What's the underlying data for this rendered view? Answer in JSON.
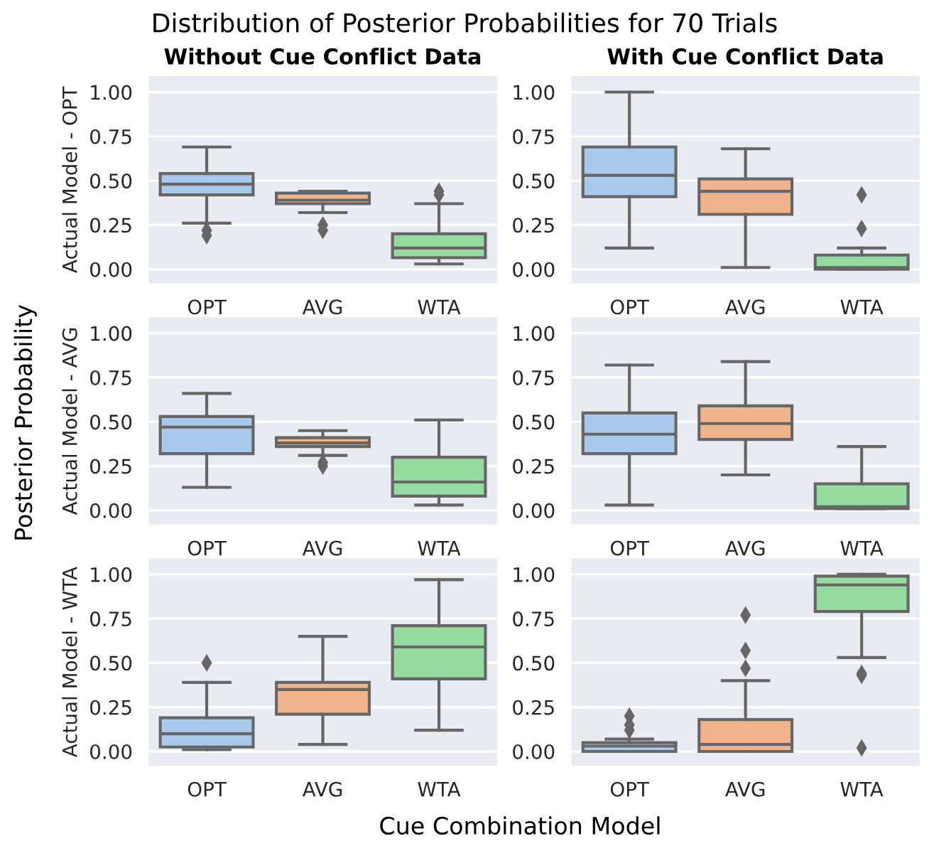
{
  "chart_data": [
    {
      "type": "box",
      "title": "Without Cue Conflict Data",
      "ylabel": "Actual Model - OPT",
      "categories": [
        "OPT",
        "AVG",
        "WTA"
      ],
      "colors": [
        "#a8c8ec",
        "#f0b48c",
        "#95dba0"
      ],
      "ylim": [
        -0.08,
        1.09
      ],
      "yticks": [
        {
          "value": 0,
          "label": "0.00"
        },
        {
          "value": 0.25,
          "label": "0.25"
        },
        {
          "value": 0.5,
          "label": "0.50"
        },
        {
          "value": 0.75,
          "label": "0.75"
        },
        {
          "value": 1,
          "label": "1.00"
        }
      ],
      "grid": "y",
      "marker": "diamond",
      "annotations": [
        "Distribution of Posterior Probabilities for 70 Trials",
        "Posterior Probability",
        "Cue Combination Model"
      ],
      "boxes": [
        {
          "low": 0.26,
          "q1": 0.42,
          "median": 0.48,
          "q3": 0.54,
          "high": 0.69,
          "outliers": [
            0.22,
            0.19
          ]
        },
        {
          "low": 0.32,
          "q1": 0.37,
          "median": 0.39,
          "q3": 0.43,
          "high": 0.44,
          "outliers": [
            0.25,
            0.22
          ]
        },
        {
          "low": 0.03,
          "q1": 0.065,
          "median": 0.12,
          "q3": 0.2,
          "high": 0.37,
          "outliers": [
            0.44,
            0.42
          ]
        }
      ]
    },
    {
      "type": "box",
      "title": "With Cue Conflict Data",
      "categories": [
        "OPT",
        "AVG",
        "WTA"
      ],
      "colors": [
        "#a8c8ec",
        "#f0b48c",
        "#95dba0"
      ],
      "ylim": [
        -0.08,
        1.09
      ],
      "yticks": [
        {
          "value": 0,
          "label": "0.00"
        },
        {
          "value": 0.25,
          "label": "0.25"
        },
        {
          "value": 0.5,
          "label": "0.50"
        },
        {
          "value": 0.75,
          "label": "0.75"
        },
        {
          "value": 1,
          "label": "1.00"
        }
      ],
      "grid": "y",
      "marker": "diamond",
      "boxes": [
        {
          "low": 0.12,
          "q1": 0.41,
          "median": 0.53,
          "q3": 0.69,
          "high": 1.0
        },
        {
          "low": 0.01,
          "q1": 0.31,
          "median": 0.44,
          "q3": 0.51,
          "high": 0.68
        },
        {
          "low": 0.0,
          "q1": 0.0,
          "median": 0.01,
          "q3": 0.08,
          "high": 0.12,
          "outliers": [
            0.42,
            0.23
          ]
        }
      ]
    },
    {
      "type": "box",
      "ylabel": "Actual Model - AVG",
      "categories": [
        "OPT",
        "AVG",
        "WTA"
      ],
      "colors": [
        "#a8c8ec",
        "#f0b48c",
        "#95dba0"
      ],
      "ylim": [
        -0.08,
        1.09
      ],
      "yticks": [
        {
          "value": 0,
          "label": "0.00"
        },
        {
          "value": 0.25,
          "label": "0.25"
        },
        {
          "value": 0.5,
          "label": "0.50"
        },
        {
          "value": 0.75,
          "label": "0.75"
        },
        {
          "value": 1,
          "label": "1.00"
        }
      ],
      "grid": "y",
      "marker": "diamond",
      "boxes": [
        {
          "low": 0.13,
          "q1": 0.32,
          "median": 0.47,
          "q3": 0.53,
          "high": 0.66
        },
        {
          "low": 0.31,
          "q1": 0.36,
          "median": 0.38,
          "q3": 0.41,
          "high": 0.45,
          "outliers": [
            0.27,
            0.25
          ]
        },
        {
          "low": 0.03,
          "q1": 0.08,
          "median": 0.16,
          "q3": 0.3,
          "high": 0.51
        }
      ]
    },
    {
      "type": "box",
      "categories": [
        "OPT",
        "AVG",
        "WTA"
      ],
      "colors": [
        "#a8c8ec",
        "#f0b48c",
        "#95dba0"
      ],
      "ylim": [
        -0.08,
        1.09
      ],
      "yticks": [
        {
          "value": 0,
          "label": "0.00"
        },
        {
          "value": 0.25,
          "label": "0.25"
        },
        {
          "value": 0.5,
          "label": "0.50"
        },
        {
          "value": 0.75,
          "label": "0.75"
        },
        {
          "value": 1,
          "label": "1.00"
        }
      ],
      "grid": "y",
      "marker": "diamond",
      "boxes": [
        {
          "low": 0.03,
          "q1": 0.32,
          "median": 0.43,
          "q3": 0.55,
          "high": 0.82
        },
        {
          "low": 0.2,
          "q1": 0.4,
          "median": 0.49,
          "q3": 0.59,
          "high": 0.84
        },
        {
          "low": 0.01,
          "q1": 0.01,
          "median": 0.02,
          "q3": 0.15,
          "high": 0.36
        }
      ]
    },
    {
      "type": "box",
      "ylabel": "Actual Model - WTA",
      "categories": [
        "OPT",
        "AVG",
        "WTA"
      ],
      "colors": [
        "#a8c8ec",
        "#f0b48c",
        "#95dba0"
      ],
      "ylim": [
        -0.08,
        1.09
      ],
      "yticks": [
        {
          "value": 0,
          "label": "0.00"
        },
        {
          "value": 0.25,
          "label": "0.25"
        },
        {
          "value": 0.5,
          "label": "0.50"
        },
        {
          "value": 0.75,
          "label": "0.75"
        },
        {
          "value": 1,
          "label": "1.00"
        }
      ],
      "grid": "y",
      "marker": "diamond",
      "boxes": [
        {
          "low": 0.01,
          "q1": 0.025,
          "median": 0.1,
          "q3": 0.19,
          "high": 0.39,
          "outliers": [
            0.5
          ]
        },
        {
          "low": 0.04,
          "q1": 0.21,
          "median": 0.35,
          "q3": 0.39,
          "high": 0.65
        },
        {
          "low": 0.12,
          "q1": 0.41,
          "median": 0.59,
          "q3": 0.71,
          "high": 0.97
        }
      ]
    },
    {
      "type": "box",
      "categories": [
        "OPT",
        "AVG",
        "WTA"
      ],
      "colors": [
        "#a8c8ec",
        "#f0b48c",
        "#95dba0"
      ],
      "ylim": [
        -0.08,
        1.09
      ],
      "yticks": [
        {
          "value": 0,
          "label": "0.00"
        },
        {
          "value": 0.25,
          "label": "0.25"
        },
        {
          "value": 0.5,
          "label": "0.50"
        },
        {
          "value": 0.75,
          "label": "0.75"
        },
        {
          "value": 1,
          "label": "1.00"
        }
      ],
      "grid": "y",
      "marker": "diamond",
      "boxes": [
        {
          "low": 0.0,
          "q1": 0.0,
          "median": 0.03,
          "q3": 0.05,
          "high": 0.07,
          "outliers": [
            0.2,
            0.15,
            0.12
          ]
        },
        {
          "low": 0.0,
          "q1": 0.0,
          "median": 0.04,
          "q3": 0.18,
          "high": 0.4,
          "outliers": [
            0.77,
            0.57,
            0.47
          ]
        },
        {
          "low": 0.53,
          "q1": 0.79,
          "median": 0.94,
          "q3": 0.99,
          "high": 1.0,
          "outliers": [
            0.44,
            0.43,
            0.02
          ]
        }
      ]
    }
  ]
}
